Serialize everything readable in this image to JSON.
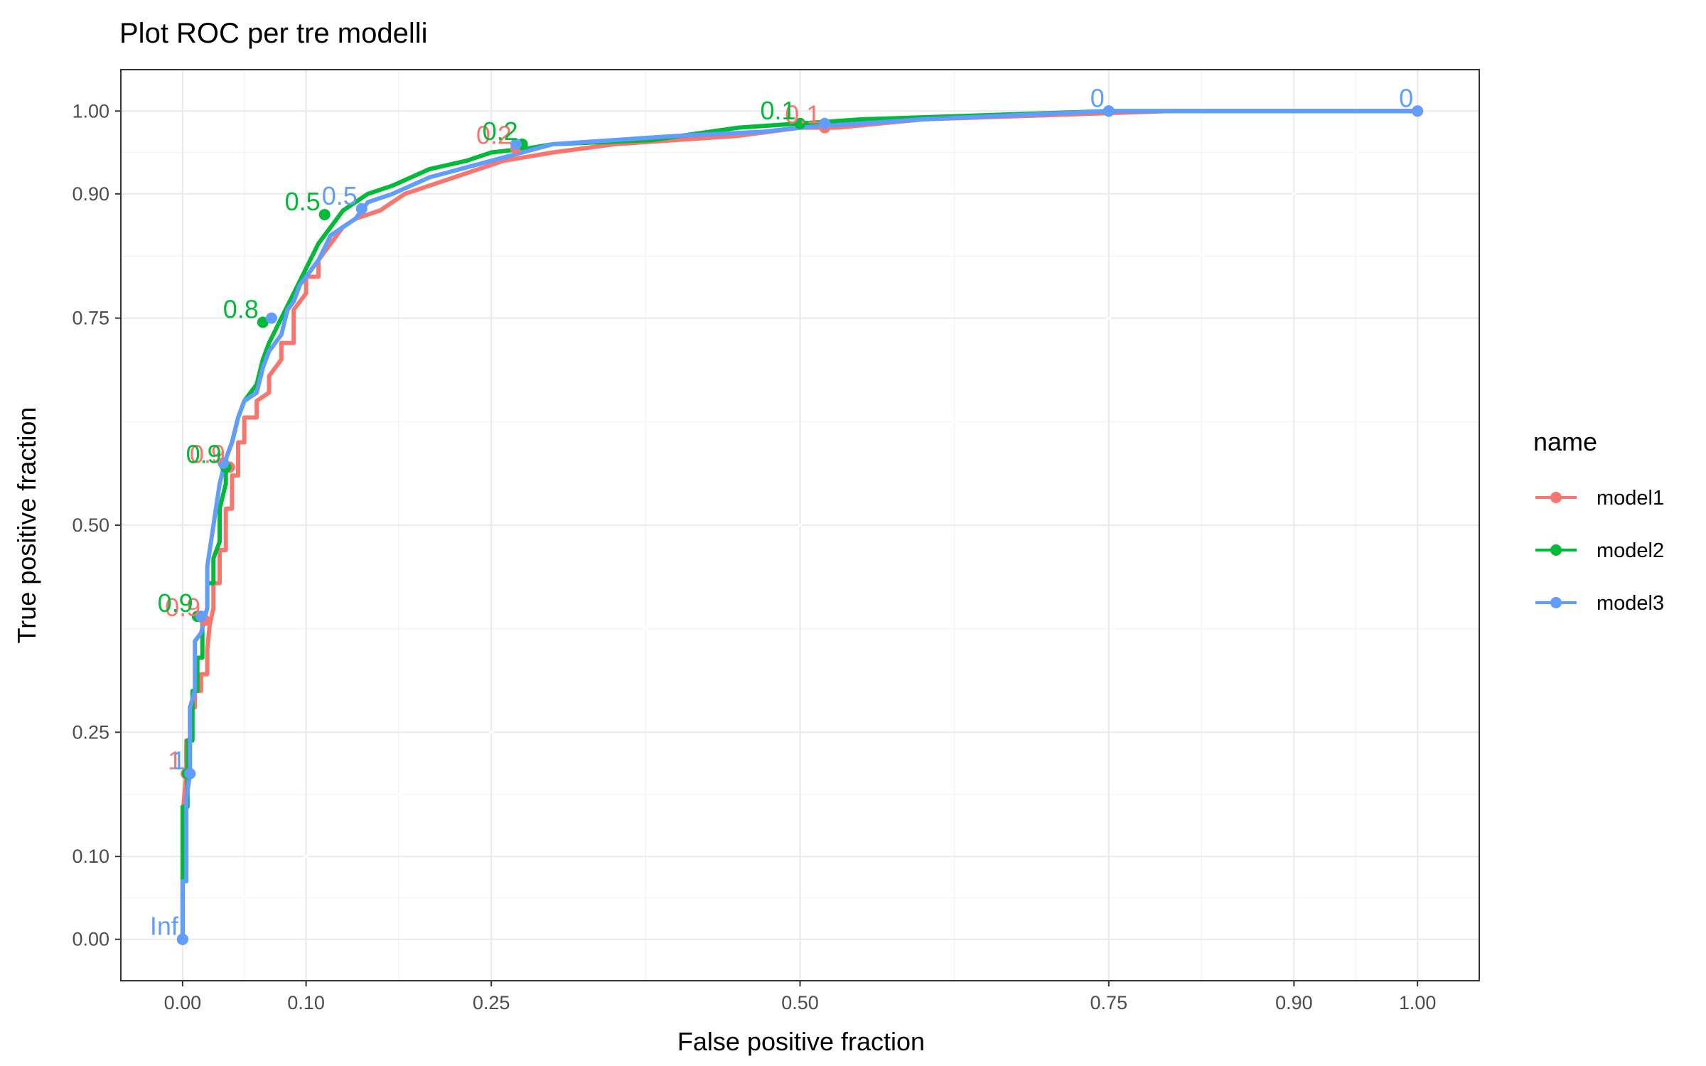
{
  "chart_data": {
    "type": "line",
    "title": "Plot ROC per tre modelli",
    "xlabel": "False positive fraction",
    "ylabel": "True positive fraction",
    "xlim": [
      -0.05,
      1.05
    ],
    "ylim": [
      -0.05,
      1.05
    ],
    "x_ticks": [
      0.0,
      0.1,
      0.25,
      0.5,
      0.75,
      0.9,
      1.0
    ],
    "x_tick_labels": [
      "0.00",
      "0.10",
      "0.25",
      "0.50",
      "0.75",
      "0.90",
      "1.00"
    ],
    "y_ticks": [
      0.0,
      0.1,
      0.25,
      0.5,
      0.75,
      0.9,
      1.0
    ],
    "y_tick_labels": [
      "0.00",
      "0.10",
      "0.25",
      "0.50",
      "0.75",
      "0.90",
      "1.00"
    ],
    "grid": true,
    "reference_line": [
      [
        0,
        0
      ],
      [
        1,
        1
      ]
    ],
    "legend": {
      "title": "name",
      "position": "right"
    },
    "series": [
      {
        "name": "model1",
        "color": "#F8766D",
        "points": [
          [
            0,
            0
          ],
          [
            0,
            0.05
          ],
          [
            0,
            0.15
          ],
          [
            0.003,
            0.2
          ],
          [
            0.003,
            0.24
          ],
          [
            0.006,
            0.24
          ],
          [
            0.006,
            0.28
          ],
          [
            0.01,
            0.28
          ],
          [
            0.01,
            0.3
          ],
          [
            0.015,
            0.3
          ],
          [
            0.015,
            0.32
          ],
          [
            0.02,
            0.32
          ],
          [
            0.02,
            0.35
          ],
          [
            0.022,
            0.38
          ],
          [
            0.025,
            0.4
          ],
          [
            0.025,
            0.43
          ],
          [
            0.03,
            0.43
          ],
          [
            0.03,
            0.47
          ],
          [
            0.035,
            0.47
          ],
          [
            0.035,
            0.52
          ],
          [
            0.04,
            0.52
          ],
          [
            0.04,
            0.56
          ],
          [
            0.045,
            0.56
          ],
          [
            0.045,
            0.6
          ],
          [
            0.05,
            0.6
          ],
          [
            0.05,
            0.63
          ],
          [
            0.06,
            0.63
          ],
          [
            0.06,
            0.65
          ],
          [
            0.07,
            0.66
          ],
          [
            0.07,
            0.68
          ],
          [
            0.08,
            0.7
          ],
          [
            0.08,
            0.72
          ],
          [
            0.09,
            0.72
          ],
          [
            0.09,
            0.76
          ],
          [
            0.1,
            0.78
          ],
          [
            0.1,
            0.8
          ],
          [
            0.11,
            0.8
          ],
          [
            0.11,
            0.82
          ],
          [
            0.12,
            0.84
          ],
          [
            0.13,
            0.86
          ],
          [
            0.14,
            0.87
          ],
          [
            0.16,
            0.88
          ],
          [
            0.18,
            0.9
          ],
          [
            0.2,
            0.91
          ],
          [
            0.22,
            0.92
          ],
          [
            0.24,
            0.93
          ],
          [
            0.26,
            0.94
          ],
          [
            0.3,
            0.95
          ],
          [
            0.35,
            0.96
          ],
          [
            0.45,
            0.97
          ],
          [
            0.5,
            0.98
          ],
          [
            0.53,
            0.98
          ],
          [
            0.6,
            0.99
          ],
          [
            0.7,
            0.995
          ],
          [
            0.8,
            1.0
          ],
          [
            1,
            1
          ]
        ]
      },
      {
        "name": "model2",
        "color": "#00BA38",
        "points": [
          [
            0,
            0
          ],
          [
            0,
            0.08
          ],
          [
            0,
            0.16
          ],
          [
            0.004,
            0.16
          ],
          [
            0.004,
            0.24
          ],
          [
            0.008,
            0.24
          ],
          [
            0.008,
            0.3
          ],
          [
            0.012,
            0.3
          ],
          [
            0.012,
            0.34
          ],
          [
            0.016,
            0.34
          ],
          [
            0.016,
            0.38
          ],
          [
            0.02,
            0.4
          ],
          [
            0.02,
            0.43
          ],
          [
            0.025,
            0.43
          ],
          [
            0.025,
            0.46
          ],
          [
            0.03,
            0.48
          ],
          [
            0.03,
            0.52
          ],
          [
            0.035,
            0.55
          ],
          [
            0.035,
            0.58
          ],
          [
            0.04,
            0.6
          ],
          [
            0.045,
            0.63
          ],
          [
            0.05,
            0.65
          ],
          [
            0.06,
            0.67
          ],
          [
            0.065,
            0.7
          ],
          [
            0.07,
            0.72
          ],
          [
            0.08,
            0.75
          ],
          [
            0.09,
            0.78
          ],
          [
            0.1,
            0.81
          ],
          [
            0.11,
            0.84
          ],
          [
            0.12,
            0.86
          ],
          [
            0.13,
            0.88
          ],
          [
            0.15,
            0.9
          ],
          [
            0.17,
            0.91
          ],
          [
            0.2,
            0.93
          ],
          [
            0.23,
            0.94
          ],
          [
            0.25,
            0.95
          ],
          [
            0.28,
            0.955
          ],
          [
            0.3,
            0.96
          ],
          [
            0.38,
            0.965
          ],
          [
            0.45,
            0.98
          ],
          [
            0.5,
            0.985
          ],
          [
            0.55,
            0.99
          ],
          [
            0.65,
            0.995
          ],
          [
            0.75,
            1.0
          ],
          [
            1,
            1
          ]
        ]
      },
      {
        "name": "model3",
        "color": "#619CFF",
        "points": [
          [
            0,
            0
          ],
          [
            0,
            0.07
          ],
          [
            0.003,
            0.07
          ],
          [
            0.003,
            0.17
          ],
          [
            0.006,
            0.2
          ],
          [
            0.006,
            0.28
          ],
          [
            0.01,
            0.3
          ],
          [
            0.01,
            0.36
          ],
          [
            0.015,
            0.37
          ],
          [
            0.02,
            0.4
          ],
          [
            0.02,
            0.45
          ],
          [
            0.025,
            0.5
          ],
          [
            0.03,
            0.55
          ],
          [
            0.035,
            0.58
          ],
          [
            0.04,
            0.6
          ],
          [
            0.045,
            0.63
          ],
          [
            0.05,
            0.65
          ],
          [
            0.06,
            0.66
          ],
          [
            0.065,
            0.69
          ],
          [
            0.07,
            0.71
          ],
          [
            0.08,
            0.73
          ],
          [
            0.085,
            0.76
          ],
          [
            0.09,
            0.77
          ],
          [
            0.095,
            0.79
          ],
          [
            0.1,
            0.8
          ],
          [
            0.11,
            0.82
          ],
          [
            0.12,
            0.85
          ],
          [
            0.13,
            0.86
          ],
          [
            0.14,
            0.87
          ],
          [
            0.15,
            0.89
          ],
          [
            0.17,
            0.9
          ],
          [
            0.2,
            0.92
          ],
          [
            0.25,
            0.94
          ],
          [
            0.3,
            0.96
          ],
          [
            0.4,
            0.97
          ],
          [
            0.47,
            0.975
          ],
          [
            0.5,
            0.98
          ],
          [
            0.6,
            0.99
          ],
          [
            0.75,
            1.0
          ],
          [
            1,
            1
          ]
        ]
      }
    ],
    "cutoff_points": [
      {
        "series": "model1",
        "x": 0,
        "y": 0,
        "label": "Inf",
        "show": false
      },
      {
        "series": "model1",
        "x": 0.003,
        "y": 0.2,
        "label": "1"
      },
      {
        "series": "model1",
        "x": 0.018,
        "y": 0.385,
        "label": "0.9"
      },
      {
        "series": "model1",
        "x": 0.038,
        "y": 0.57,
        "label": "0.9"
      },
      {
        "series": "model1",
        "x": 0.27,
        "y": 0.955,
        "label": "0.2"
      },
      {
        "series": "model1",
        "x": 0.52,
        "y": 0.98,
        "label": "0.1"
      },
      {
        "series": "model1",
        "x": 1,
        "y": 1,
        "label": "0",
        "show": false
      },
      {
        "series": "model2",
        "x": 0,
        "y": 0,
        "label": "Inf",
        "show": false
      },
      {
        "series": "model2",
        "x": 0.004,
        "y": 0.2,
        "label": "1",
        "show": false
      },
      {
        "series": "model2",
        "x": 0.012,
        "y": 0.39,
        "label": "0.9"
      },
      {
        "series": "model2",
        "x": 0.035,
        "y": 0.57,
        "label": "0.9"
      },
      {
        "series": "model2",
        "x": 0.065,
        "y": 0.745,
        "label": "0.8"
      },
      {
        "series": "model2",
        "x": 0.115,
        "y": 0.875,
        "label": "0.5"
      },
      {
        "series": "model2",
        "x": 0.275,
        "y": 0.96,
        "label": "0.2"
      },
      {
        "series": "model2",
        "x": 0.5,
        "y": 0.985,
        "label": "0.1"
      },
      {
        "series": "model2",
        "x": 0.75,
        "y": 1.0,
        "label": "0",
        "show": false
      },
      {
        "series": "model3",
        "x": 0,
        "y": 0,
        "label": "Inf"
      },
      {
        "series": "model3",
        "x": 0.006,
        "y": 0.2,
        "label": "1"
      },
      {
        "series": "model3",
        "x": 0.015,
        "y": 0.39,
        "label": "0.9",
        "show": false
      },
      {
        "series": "model3",
        "x": 0.033,
        "y": 0.575,
        "label": "0.9",
        "show": false
      },
      {
        "series": "model3",
        "x": 0.072,
        "y": 0.75,
        "label": "0.8",
        "show": false
      },
      {
        "series": "model3",
        "x": 0.145,
        "y": 0.882,
        "label": "0.5"
      },
      {
        "series": "model3",
        "x": 0.27,
        "y": 0.96,
        "label": "0.2",
        "show": false
      },
      {
        "series": "model3",
        "x": 0.52,
        "y": 0.985,
        "label": "0.1",
        "show": false
      },
      {
        "series": "model3",
        "x": 0.75,
        "y": 1.0,
        "label": "0"
      },
      {
        "series": "model3",
        "x": 1,
        "y": 1,
        "label": "0"
      }
    ]
  }
}
